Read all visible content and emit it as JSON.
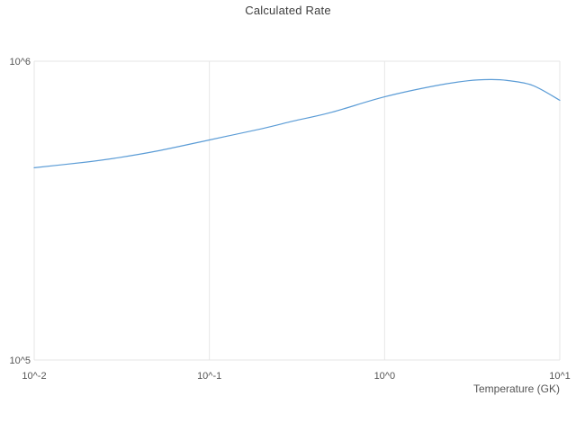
{
  "page": {
    "background_color": "#ffffff"
  },
  "chart_data": {
    "type": "line",
    "title": "Calculated Rate",
    "xlabel": "Temperature (GK)",
    "ylabel": "",
    "x_scale": "log",
    "y_scale": "log",
    "xlim": [
      0.01,
      10
    ],
    "ylim": [
      100000,
      1000000
    ],
    "grid": true,
    "legend": "none",
    "line_color": "#5b9cd6",
    "grid_color": "#e6e6e6",
    "text_color": "#555555",
    "x_ticks": [
      {
        "value": 0.01,
        "label": "10^-2"
      },
      {
        "value": 0.1,
        "label": "10^-1"
      },
      {
        "value": 1,
        "label": "10^0"
      },
      {
        "value": 10,
        "label": "10^1"
      }
    ],
    "y_ticks": [
      {
        "value": 100000,
        "label": "10^5"
      },
      {
        "value": 1000000,
        "label": "10^6"
      }
    ],
    "series": [
      {
        "name": "Calculated Rate",
        "x": [
          0.01,
          0.02,
          0.03,
          0.05,
          0.1,
          0.2,
          0.3,
          0.5,
          1.0,
          2.0,
          3.0,
          4.0,
          5.0,
          7.0,
          10.0
        ],
        "y": [
          440000,
          460000,
          475000,
          500000,
          545000,
          595000,
          630000,
          675000,
          760000,
          830000,
          860000,
          868000,
          862000,
          830000,
          740000
        ]
      }
    ]
  }
}
